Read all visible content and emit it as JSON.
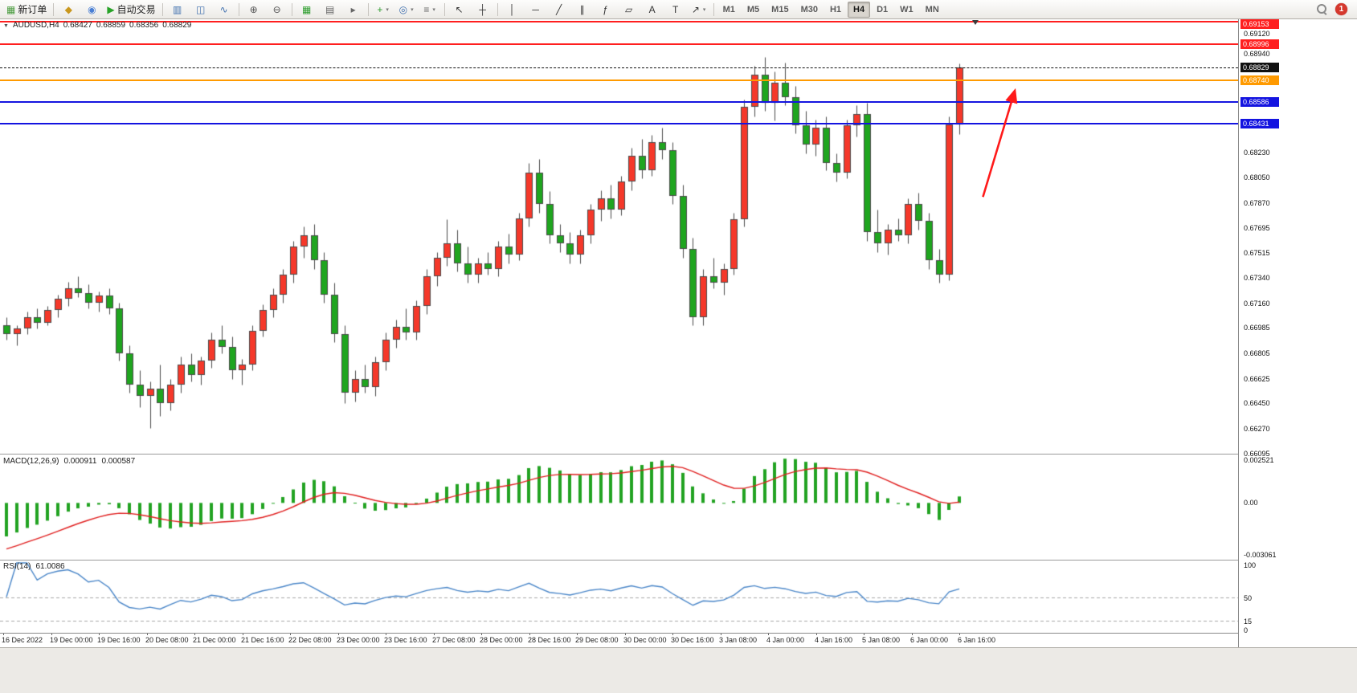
{
  "toolbar": {
    "groups": [
      {
        "buttons": [
          {
            "name": "new-order",
            "glyph": "▦",
            "color": "#4a9c3f",
            "label": "新订单"
          }
        ]
      },
      {
        "buttons": [
          {
            "name": "mql5-market",
            "glyph": "◆",
            "color": "#c9971d"
          },
          {
            "name": "news-calendar",
            "glyph": "◉",
            "color": "#4a7fd4"
          },
          {
            "name": "autotrading",
            "glyph": "▶",
            "color": "#27a327",
            "label": "自动交易"
          }
        ]
      },
      {
        "buttons": [
          {
            "name": "bar-chart",
            "glyph": "▥",
            "color": "#3f6fae"
          },
          {
            "name": "candlestick-chart",
            "glyph": "◫",
            "color": "#3f6fae"
          },
          {
            "name": "line-chart",
            "glyph": "∿",
            "color": "#3f6fae"
          }
        ]
      },
      {
        "buttons": [
          {
            "name": "zoom-in",
            "glyph": "⊕",
            "color": "#555555"
          },
          {
            "name": "zoom-out",
            "glyph": "⊖",
            "color": "#555555"
          }
        ]
      },
      {
        "buttons": [
          {
            "name": "tile-windows",
            "glyph": "▦",
            "color": "#2f9e2f"
          },
          {
            "name": "auto-arrange",
            "glyph": "▤",
            "color": "#666666"
          },
          {
            "name": "chart-shift",
            "glyph": "▸",
            "color": "#666666"
          }
        ]
      },
      {
        "buttons": [
          {
            "name": "new-chart",
            "glyph": "+",
            "color": "#2f9e2f",
            "dropdown": true
          },
          {
            "name": "profiles",
            "glyph": "◎",
            "color": "#3f6fae",
            "dropdown": true
          },
          {
            "name": "indicators-list",
            "glyph": "≡",
            "color": "#666666",
            "dropdown": true
          }
        ]
      },
      {
        "buttons": [
          {
            "name": "cursor",
            "glyph": "↖",
            "color": "#333333"
          },
          {
            "name": "crosshair",
            "glyph": "┼",
            "color": "#333333"
          }
        ]
      },
      {
        "buttons": [
          {
            "name": "vertical-line",
            "glyph": "│",
            "color": "#333333"
          },
          {
            "name": "horizontal-line",
            "glyph": "─",
            "color": "#333333"
          },
          {
            "name": "trendline",
            "glyph": "╱",
            "color": "#333333"
          },
          {
            "name": "equidistant-channel",
            "glyph": "∥",
            "color": "#333333"
          },
          {
            "name": "fibonacci",
            "glyph": "ƒ",
            "color": "#333333"
          },
          {
            "name": "shapes",
            "glyph": "▱",
            "color": "#333333"
          },
          {
            "name": "text",
            "glyph": "A",
            "color": "#333333"
          },
          {
            "name": "text-label",
            "glyph": "T",
            "color": "#333333"
          },
          {
            "name": "arrows",
            "glyph": "↗",
            "color": "#333333",
            "dropdown": true
          }
        ]
      }
    ],
    "timeframes": [
      "M1",
      "M5",
      "M15",
      "M30",
      "H1",
      "H4",
      "D1",
      "W1",
      "MN"
    ],
    "active_timeframe": "H4",
    "notification_count": "1"
  },
  "quote": {
    "symbol": "AUDUSD,H4",
    "open": "0.68427",
    "high": "0.68859",
    "low": "0.68356",
    "close": "0.68829"
  },
  "indicators": {
    "macd": {
      "label": "MACD(12,26,9)",
      "value_main": "0.000911",
      "value_signal": "0.000587",
      "scale_labels": [
        {
          "text": "0.002521",
          "value": 0.002521
        },
        {
          "text": "0.00",
          "value": 0
        },
        {
          "text": "-0.003061",
          "value": -0.003061
        }
      ]
    },
    "rsi": {
      "label": "RSI(14)",
      "value": "61.0086",
      "scale_labels": [
        {
          "text": "100",
          "value": 100
        },
        {
          "text": "50",
          "value": 50
        },
        {
          "text": "15",
          "value": 15
        },
        {
          "text": "0",
          "value": 0
        }
      ],
      "levels": [
        50,
        15
      ]
    }
  },
  "price_scale": [
    {
      "text": "0.69120",
      "value": 0.6912
    },
    {
      "text": "0.68940",
      "value": 0.6894
    },
    {
      "text": "0.68230",
      "value": 0.6823
    },
    {
      "text": "0.68050",
      "value": 0.6805
    },
    {
      "text": "0.67870",
      "value": 0.6787
    },
    {
      "text": "0.67695",
      "value": 0.67695
    },
    {
      "text": "0.67515",
      "value": 0.67515
    },
    {
      "text": "0.67340",
      "value": 0.6734
    },
    {
      "text": "0.67160",
      "value": 0.6716
    },
    {
      "text": "0.66985",
      "value": 0.66985
    },
    {
      "text": "0.66805",
      "value": 0.66805
    },
    {
      "text": "0.66625",
      "value": 0.66625
    },
    {
      "text": "0.66450",
      "value": 0.6645
    },
    {
      "text": "0.66270",
      "value": 0.6627
    },
    {
      "text": "0.66095",
      "value": 0.66095
    }
  ],
  "chart_data": {
    "type": "candlestick",
    "title": "AUDUSD H4",
    "symbol": "AUDUSD",
    "timeframe": "H4",
    "ylim": [
      0.6609,
      0.6917
    ],
    "current_bar": {
      "open": 0.68427,
      "high": 0.68859,
      "low": 0.68356,
      "close": 0.68829
    },
    "xticklabels": [
      "16 Dec 2022",
      "19 Dec 00:00",
      "19 Dec 16:00",
      "20 Dec 08:00",
      "21 Dec 00:00",
      "21 Dec 16:00",
      "22 Dec 08:00",
      "23 Dec 00:00",
      "23 Dec 16:00",
      "27 Dec 08:00",
      "28 Dec 00:00",
      "28 Dec 16:00",
      "29 Dec 08:00",
      "30 Dec 00:00",
      "30 Dec 16:00",
      "3 Jan 08:00",
      "4 Jan 00:00",
      "4 Jan 16:00",
      "5 Jan 08:00",
      "6 Jan 00:00",
      "6 Jan 16:00"
    ],
    "ohlc": [
      [
        0.67,
        0.6706,
        0.669,
        0.6694
      ],
      [
        0.6694,
        0.67,
        0.6686,
        0.6698
      ],
      [
        0.6698,
        0.671,
        0.6694,
        0.6706
      ],
      [
        0.6706,
        0.6712,
        0.6698,
        0.6702
      ],
      [
        0.6702,
        0.6714,
        0.67,
        0.6711
      ],
      [
        0.6711,
        0.6722,
        0.6706,
        0.6719
      ],
      [
        0.6719,
        0.6731,
        0.6714,
        0.6726
      ],
      [
        0.6726,
        0.6735,
        0.672,
        0.6723
      ],
      [
        0.6723,
        0.6729,
        0.6712,
        0.6716
      ],
      [
        0.6716,
        0.6724,
        0.671,
        0.6721
      ],
      [
        0.6721,
        0.6726,
        0.6708,
        0.6712
      ],
      [
        0.6712,
        0.6716,
        0.6675,
        0.668
      ],
      [
        0.668,
        0.6686,
        0.6652,
        0.6658
      ],
      [
        0.6658,
        0.6668,
        0.6642,
        0.665
      ],
      [
        0.665,
        0.666,
        0.6627,
        0.6655
      ],
      [
        0.6655,
        0.6672,
        0.6636,
        0.6645
      ],
      [
        0.6645,
        0.6662,
        0.664,
        0.6658
      ],
      [
        0.6658,
        0.6678,
        0.6652,
        0.6672
      ],
      [
        0.6672,
        0.668,
        0.666,
        0.6665
      ],
      [
        0.6665,
        0.6678,
        0.6658,
        0.6675
      ],
      [
        0.6675,
        0.6695,
        0.667,
        0.669
      ],
      [
        0.669,
        0.67,
        0.668,
        0.6685
      ],
      [
        0.6685,
        0.6692,
        0.6662,
        0.6668
      ],
      [
        0.6668,
        0.6676,
        0.6658,
        0.6672
      ],
      [
        0.6672,
        0.67,
        0.6668,
        0.6696
      ],
      [
        0.6696,
        0.6715,
        0.6692,
        0.6711
      ],
      [
        0.6711,
        0.6726,
        0.6706,
        0.6722
      ],
      [
        0.6722,
        0.674,
        0.6716,
        0.6736
      ],
      [
        0.6736,
        0.676,
        0.673,
        0.6756
      ],
      [
        0.6756,
        0.677,
        0.6748,
        0.6764
      ],
      [
        0.6764,
        0.6772,
        0.674,
        0.6746
      ],
      [
        0.6746,
        0.6752,
        0.6716,
        0.6722
      ],
      [
        0.6722,
        0.673,
        0.6688,
        0.6694
      ],
      [
        0.6694,
        0.67,
        0.6645,
        0.6652
      ],
      [
        0.6652,
        0.6668,
        0.6646,
        0.6662
      ],
      [
        0.6662,
        0.6672,
        0.6652,
        0.6656
      ],
      [
        0.6656,
        0.6678,
        0.665,
        0.6674
      ],
      [
        0.6674,
        0.6695,
        0.6668,
        0.669
      ],
      [
        0.669,
        0.6704,
        0.6684,
        0.6699
      ],
      [
        0.6699,
        0.6712,
        0.669,
        0.6695
      ],
      [
        0.6695,
        0.6718,
        0.669,
        0.6714
      ],
      [
        0.6714,
        0.674,
        0.6708,
        0.6735
      ],
      [
        0.6735,
        0.6752,
        0.6728,
        0.6748
      ],
      [
        0.6748,
        0.6775,
        0.6742,
        0.6758
      ],
      [
        0.6758,
        0.6768,
        0.6738,
        0.6744
      ],
      [
        0.6744,
        0.6756,
        0.673,
        0.6736
      ],
      [
        0.6736,
        0.6748,
        0.673,
        0.6744
      ],
      [
        0.6744,
        0.6752,
        0.6736,
        0.674
      ],
      [
        0.674,
        0.676,
        0.6735,
        0.6756
      ],
      [
        0.6756,
        0.6765,
        0.6744,
        0.675
      ],
      [
        0.675,
        0.678,
        0.6746,
        0.6776
      ],
      [
        0.6776,
        0.6815,
        0.677,
        0.6808
      ],
      [
        0.6808,
        0.6818,
        0.678,
        0.6786
      ],
      [
        0.6786,
        0.6795,
        0.6758,
        0.6764
      ],
      [
        0.6764,
        0.6772,
        0.6752,
        0.6758
      ],
      [
        0.6758,
        0.6766,
        0.6744,
        0.675
      ],
      [
        0.675,
        0.6768,
        0.6744,
        0.6764
      ],
      [
        0.6764,
        0.6786,
        0.6758,
        0.6782
      ],
      [
        0.6782,
        0.6796,
        0.6774,
        0.679
      ],
      [
        0.679,
        0.68,
        0.6776,
        0.6782
      ],
      [
        0.6782,
        0.6806,
        0.6778,
        0.6802
      ],
      [
        0.6802,
        0.6826,
        0.6796,
        0.682
      ],
      [
        0.682,
        0.6832,
        0.6804,
        0.681
      ],
      [
        0.681,
        0.6835,
        0.6806,
        0.683
      ],
      [
        0.683,
        0.684,
        0.6818,
        0.6824
      ],
      [
        0.6824,
        0.683,
        0.6786,
        0.6792
      ],
      [
        0.6792,
        0.68,
        0.6748,
        0.6754
      ],
      [
        0.6754,
        0.6762,
        0.67,
        0.6706
      ],
      [
        0.6706,
        0.674,
        0.67,
        0.6735
      ],
      [
        0.6735,
        0.6748,
        0.6726,
        0.673
      ],
      [
        0.673,
        0.6744,
        0.6722,
        0.674
      ],
      [
        0.674,
        0.678,
        0.6736,
        0.6775
      ],
      [
        0.6775,
        0.686,
        0.677,
        0.6855
      ],
      [
        0.6855,
        0.6884,
        0.6848,
        0.6878
      ],
      [
        0.6878,
        0.689,
        0.6852,
        0.6858
      ],
      [
        0.6858,
        0.688,
        0.6845,
        0.6872
      ],
      [
        0.6872,
        0.6886,
        0.6856,
        0.6862
      ],
      [
        0.6862,
        0.687,
        0.6836,
        0.6842
      ],
      [
        0.6842,
        0.6852,
        0.6822,
        0.6828
      ],
      [
        0.6828,
        0.6846,
        0.682,
        0.684
      ],
      [
        0.684,
        0.6848,
        0.681,
        0.6815
      ],
      [
        0.6815,
        0.6822,
        0.6802,
        0.6808
      ],
      [
        0.6808,
        0.6846,
        0.6804,
        0.6842
      ],
      [
        0.6842,
        0.6856,
        0.6834,
        0.685
      ],
      [
        0.685,
        0.6858,
        0.676,
        0.6766
      ],
      [
        0.6766,
        0.6782,
        0.6752,
        0.6758
      ],
      [
        0.6758,
        0.6772,
        0.675,
        0.6768
      ],
      [
        0.6768,
        0.6776,
        0.676,
        0.6764
      ],
      [
        0.6764,
        0.679,
        0.6758,
        0.6786
      ],
      [
        0.6786,
        0.6794,
        0.6768,
        0.6774
      ],
      [
        0.6774,
        0.678,
        0.674,
        0.6746
      ],
      [
        0.6746,
        0.6754,
        0.673,
        0.6736
      ],
      [
        0.6736,
        0.6848,
        0.6732,
        0.68427
      ],
      [
        0.68427,
        0.68859,
        0.68356,
        0.68829
      ]
    ],
    "hlines": [
      {
        "label": "0.69153",
        "value": 0.69153,
        "color": "#ff1f1f",
        "style": "solid"
      },
      {
        "label": "0.68996",
        "value": 0.68996,
        "color": "#ff1f1f",
        "style": "solid"
      },
      {
        "label": "0.68829",
        "value": 0.68829,
        "color": "#111111",
        "style": "dashed",
        "role": "bid-price"
      },
      {
        "label": "0.68740",
        "value": 0.6874,
        "color": "#ff9a00",
        "style": "solid"
      },
      {
        "label": "0.68586",
        "value": 0.68586,
        "color": "#1414e0",
        "style": "solid"
      },
      {
        "label": "0.68431",
        "value": 0.68431,
        "color": "#1414e0",
        "style": "solid"
      }
    ],
    "annotations": [
      {
        "type": "up-arrow",
        "color": "#ff1a1a",
        "from_bar": 95.3,
        "from_price": 0.6791,
        "to_bar": 98.4,
        "to_price": 0.6866
      }
    ],
    "macd": {
      "fast": 12,
      "slow": 26,
      "signal": 9,
      "range": [
        -0.003061,
        0.002521
      ],
      "seed_fast_offset": -0.0008,
      "seed_slow_offset": 0.0014,
      "seed_signal": -0.0029,
      "histogram_color": "#22a322",
      "signal_color": "#e02020"
    },
    "rsi": {
      "period": 14,
      "range": [
        0,
        100
      ],
      "line_color": "#4a86c8"
    },
    "colors": {
      "bull_body": "#f5382a",
      "bear_body": "#1fa51f",
      "outline": "#4a4a4a"
    }
  }
}
